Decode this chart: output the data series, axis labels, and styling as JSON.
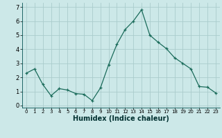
{
  "x": [
    0,
    1,
    2,
    3,
    4,
    5,
    6,
    7,
    8,
    9,
    10,
    11,
    12,
    13,
    14,
    15,
    16,
    17,
    18,
    19,
    20,
    21,
    22,
    23
  ],
  "y": [
    2.3,
    2.6,
    1.5,
    0.7,
    1.2,
    1.1,
    0.85,
    0.8,
    0.35,
    1.25,
    2.9,
    4.35,
    5.4,
    6.0,
    6.8,
    5.0,
    4.5,
    4.05,
    3.4,
    3.0,
    2.6,
    1.35,
    1.3,
    0.9
  ],
  "xlabel": "Humidex (Indice chaleur)",
  "bg_color": "#cce8e8",
  "grid_color": "#aacccc",
  "line_color": "#1a6b5a",
  "marker_color": "#1a6b5a",
  "ylim": [
    -0.15,
    7.3
  ],
  "xlim": [
    -0.5,
    23.5
  ],
  "yticks": [
    0,
    1,
    2,
    3,
    4,
    5,
    6,
    7
  ],
  "xticks": [
    0,
    1,
    2,
    3,
    4,
    5,
    6,
    7,
    8,
    9,
    10,
    11,
    12,
    13,
    14,
    15,
    16,
    17,
    18,
    19,
    20,
    21,
    22,
    23
  ],
  "xlabel_fontsize": 7,
  "xlabel_color": "#003030",
  "ytick_fontsize": 6,
  "xtick_fontsize": 5
}
